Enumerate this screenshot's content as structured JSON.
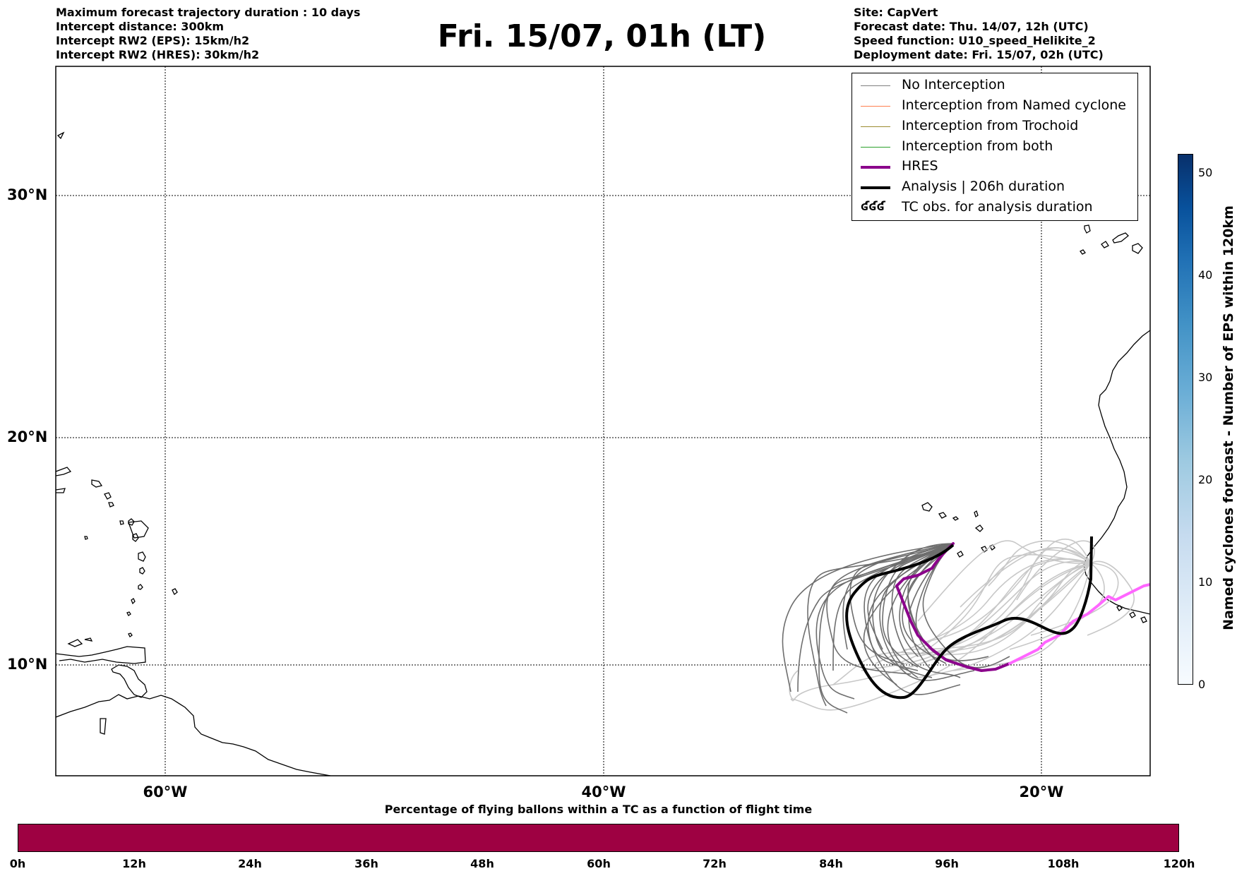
{
  "header": {
    "left_lines": [
      "Maximum forecast trajectory duration : 10 days",
      "Intercept distance: 300km",
      "Intercept RW2 (EPS):  15km/h2",
      "Intercept RW2 (HRES): 30km/h2"
    ],
    "title": "Fri. 15/07, 01h (LT)",
    "right_lines": [
      "Site: CapVert",
      "Forecast date: Thu. 14/07, 12h (UTC)",
      "Speed function: U10_speed_Helikite_2",
      "Deployment date: Fri. 15/07, 02h (UTC)"
    ]
  },
  "map": {
    "lat_labels": [
      "30°N",
      "20°N",
      "10°N"
    ],
    "lon_labels": [
      "60°W",
      "40°W",
      "20°W"
    ]
  },
  "legend": {
    "items": [
      {
        "label": "No Interception",
        "color": "#808080",
        "style": "thin-line"
      },
      {
        "label": "Interception from Named cyclone",
        "color": "#ff7f50",
        "style": "thin-line"
      },
      {
        "label": "Interception from Trochoid",
        "color": "#9b8b30",
        "style": "thin-line"
      },
      {
        "label": "Interception from both",
        "color": "#2ca02c",
        "style": "thin-line"
      },
      {
        "label": "HRES",
        "color": "#8b008b",
        "style": "thick-line"
      },
      {
        "label": "Analysis | 206h duration",
        "color": "#000000",
        "style": "thick-line"
      },
      {
        "label": "TC obs. for analysis duration",
        "color": "#000000",
        "style": "tc-symbols",
        "symbol": "ʛʛʛ"
      }
    ]
  },
  "right_colorbar": {
    "label": "Named cyclones forecast - Number of EPS within 120km",
    "ticks": [
      "50",
      "40",
      "30",
      "20",
      "10",
      "0"
    ],
    "colors": [
      "#f7fbff",
      "#08306b"
    ]
  },
  "bottom_colorbar": {
    "title": "Percentage of flying ballons within a TC as a function of flight time",
    "ticks": [
      "0h",
      "12h",
      "24h",
      "36h",
      "48h",
      "60h",
      "72h",
      "84h",
      "96h",
      "108h",
      "120h"
    ],
    "fill_color": "#9e0142"
  }
}
